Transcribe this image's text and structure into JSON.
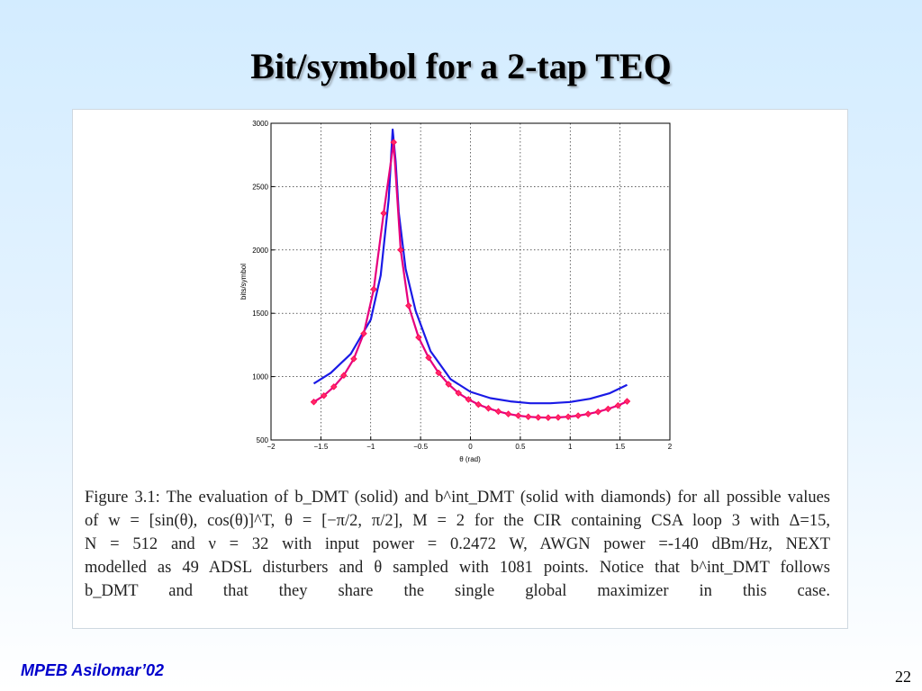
{
  "slide": {
    "title": "Bit/symbol for a 2-tap TEQ",
    "footer": "MPEB Asilomar’02",
    "page_number": "22"
  },
  "caption": {
    "lines": [
      "Figure 3.1: The evaluation of b_DMT (solid) and b^int_DMT (solid with diamonds) for all possible values",
      "of w = [sin(θ), cos(θ)]^T, θ = [−π/2, π/2], M = 2 for the CIR containing CSA loop 3 with Δ=15,",
      "N = 512 and ν = 32 with input power = 0.2472 W, AWGN power =-140 dBm/Hz, NEXT",
      "modelled as 49 ADSL disturbers and θ sampled with 1081 points. Notice that b^int_DMT follows",
      "b_DMT and that they share the single global maximizer in this case."
    ]
  },
  "chart_data": {
    "type": "line",
    "xlabel": "θ (rad)",
    "ylabel": "bits/symbol",
    "xlim": [
      -2,
      2
    ],
    "ylim": [
      500,
      3000
    ],
    "xticks": [
      "−2",
      "−1.5",
      "−1",
      "−0.5",
      "0",
      "0.5",
      "1",
      "1.5",
      "2"
    ],
    "yticks": [
      "500",
      "1000",
      "1500",
      "2000",
      "2500",
      "3000"
    ],
    "grid": true,
    "series": [
      {
        "color": "#1a1ae6",
        "marker": "none",
        "x": [
          -1.571,
          -1.4,
          -1.2,
          -1.0,
          -0.9,
          -0.82,
          -0.78,
          -0.75,
          -0.72,
          -0.65,
          -0.55,
          -0.4,
          -0.2,
          0.0,
          0.2,
          0.4,
          0.6,
          0.8,
          1.0,
          1.2,
          1.4,
          1.571
        ],
        "y": [
          945,
          1030,
          1180,
          1450,
          1800,
          2400,
          2950,
          2700,
          2300,
          1850,
          1520,
          1200,
          980,
          880,
          830,
          805,
          790,
          790,
          800,
          825,
          870,
          935
        ]
      },
      {
        "color": "#e6007e",
        "marker": "diamond",
        "x": [
          -1.571,
          -1.47,
          -1.37,
          -1.27,
          -1.17,
          -1.07,
          -0.97,
          -0.87,
          -0.77,
          -0.7,
          -0.62,
          -0.52,
          -0.42,
          -0.32,
          -0.22,
          -0.12,
          -0.02,
          0.08,
          0.18,
          0.28,
          0.38,
          0.48,
          0.58,
          0.68,
          0.78,
          0.88,
          0.98,
          1.08,
          1.18,
          1.28,
          1.38,
          1.48,
          1.571
        ],
        "y": [
          800,
          850,
          920,
          1010,
          1140,
          1340,
          1690,
          2290,
          2850,
          2000,
          1560,
          1310,
          1150,
          1030,
          940,
          870,
          820,
          780,
          750,
          725,
          705,
          692,
          683,
          678,
          676,
          678,
          683,
          692,
          705,
          722,
          745,
          772,
          805
        ]
      }
    ]
  }
}
